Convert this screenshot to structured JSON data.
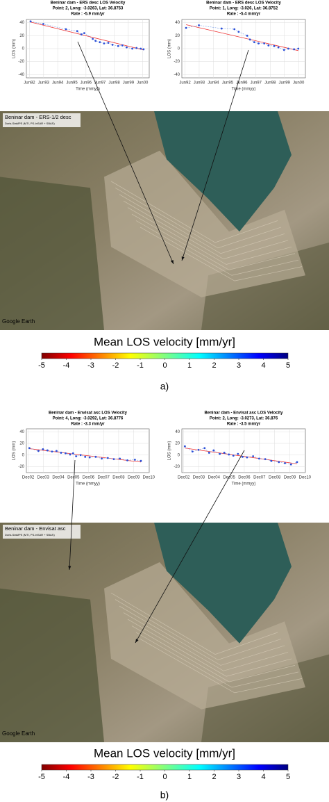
{
  "panels": [
    {
      "label": "a)",
      "charts": [
        {
          "type": "line",
          "title": "Beninar dam - ERS desc  LOS Velocity",
          "subtitle": "Point: 2,  Long: -3.0263,  Lat: 36.8753",
          "rate": "Rate : -5.9 mm/yr",
          "xlabel": "Time (mmyy)",
          "ylabel": "LOS (mm)",
          "xlim": [
            1992.2,
            2000.9
          ],
          "ylim": [
            -45,
            45
          ],
          "yticks": [
            40,
            20,
            0,
            -20,
            -40
          ],
          "xticks": [
            {
              "value": 1992.42,
              "label": "Jun92"
            },
            {
              "value": 1993.42,
              "label": "Jun93"
            },
            {
              "value": 1994.42,
              "label": "Jun94"
            },
            {
              "value": 1995.42,
              "label": "Jun95"
            },
            {
              "value": 1996.42,
              "label": "Jun96"
            },
            {
              "value": 1997.42,
              "label": "Jun97"
            },
            {
              "value": 1998.42,
              "label": "Jun98"
            },
            {
              "value": 1999.42,
              "label": "Jun99"
            },
            {
              "value": 2000.42,
              "label": "Jun00"
            }
          ],
          "grid": true,
          "color": "#2b4fd8",
          "trend_color": "#e33",
          "x": [
            1992.5,
            1993.4,
            1995.0,
            1995.8,
            1996.1,
            1996.3,
            1996.9,
            1997.1,
            1997.4,
            1997.7,
            1998.0,
            1998.3,
            1998.7,
            1999.0,
            1999.3,
            1999.7,
            2000.0,
            2000.3,
            2000.5
          ],
          "values": [
            42,
            38,
            30,
            27,
            22,
            24,
            15,
            12,
            10,
            8,
            9,
            6,
            4,
            5,
            2,
            0,
            1,
            0,
            -1
          ],
          "trend": {
            "x": [
              1992.5,
              2000.5
            ],
            "values": [
              41,
              -2
            ]
          }
        },
        {
          "type": "line",
          "title": "Beninar dam - ERS desc  LOS Velocity",
          "subtitle": "Point: 1,  Long: -3.026,  Lat: 36.8752",
          "rate": "Rate : -5.4 mm/yr",
          "xlabel": "Time (mmyy)",
          "ylabel": "LOS (mm)",
          "xlim": [
            1992.2,
            2000.9
          ],
          "ylim": [
            -45,
            45
          ],
          "yticks": [
            40,
            20,
            0,
            -20,
            -40
          ],
          "xticks": [
            {
              "value": 1992.42,
              "label": "Jun92"
            },
            {
              "value": 1993.42,
              "label": "Jun93"
            },
            {
              "value": 1994.42,
              "label": "Jun94"
            },
            {
              "value": 1995.42,
              "label": "Jun95"
            },
            {
              "value": 1996.42,
              "label": "Jun96"
            },
            {
              "value": 1997.42,
              "label": "Jun97"
            },
            {
              "value": 1998.42,
              "label": "Jun98"
            },
            {
              "value": 1999.42,
              "label": "Jun99"
            },
            {
              "value": 2000.42,
              "label": "Jun00"
            }
          ],
          "grid": true,
          "color": "#2b4fd8",
          "trend_color": "#e33",
          "x": [
            1992.5,
            1993.4,
            1995.0,
            1995.9,
            1996.2,
            1996.8,
            1997.0,
            1997.3,
            1997.6,
            1998.0,
            1998.3,
            1998.7,
            1999.0,
            1999.4,
            1999.7,
            2000.1,
            2000.4
          ],
          "values": [
            32,
            36,
            31,
            30,
            26,
            20,
            14,
            10,
            8,
            8,
            5,
            4,
            2,
            -2,
            0,
            -1,
            0
          ],
          "trend": {
            "x": [
              1992.5,
              2000.4
            ],
            "values": [
              37,
              -3
            ]
          }
        }
      ],
      "map": {
        "title": "Beninar dam - ERS-1/2 desc",
        "subtitle": "Doris-StaMPS (MTI, PS-InSAR + SBAS)",
        "credit": "Google Earth"
      },
      "colorbar": {
        "title": "Mean LOS velocity [mm/yr]",
        "range": [
          -5,
          5
        ],
        "ticks": [
          -5,
          -4,
          -3,
          -2,
          -1,
          0,
          1,
          2,
          3,
          4,
          5
        ]
      }
    },
    {
      "label": "b)",
      "charts": [
        {
          "type": "line",
          "title": "Beninar dam - Envisat asc  LOS Velocity",
          "subtitle": "Point: 4,  Long: -3.0292,  Lat: 36.8776",
          "rate": "Rate : -3.3 mm/yr",
          "xlabel": "Time (mmyy)",
          "ylabel": "LOS (mm)",
          "xlim": [
            2002.8,
            2010.95
          ],
          "ylim": [
            -30,
            45
          ],
          "yticks": [
            40,
            20,
            0,
            -20
          ],
          "xticks": [
            {
              "value": 2002.92,
              "label": "Dec02"
            },
            {
              "value": 2003.92,
              "label": "Dec03"
            },
            {
              "value": 2004.92,
              "label": "Dec04"
            },
            {
              "value": 2005.92,
              "label": "Dec05"
            },
            {
              "value": 2006.92,
              "label": "Dec06"
            },
            {
              "value": 2007.92,
              "label": "Dec07"
            },
            {
              "value": 2008.92,
              "label": "Dec08"
            },
            {
              "value": 2009.92,
              "label": "Dec09"
            },
            {
              "value": 2010.92,
              "label": "Dec10"
            }
          ],
          "grid": true,
          "color": "#2b4fd8",
          "trend_color": "#e33",
          "x": [
            2003.0,
            2003.6,
            2003.9,
            2004.2,
            2004.5,
            2004.8,
            2005.1,
            2005.4,
            2005.7,
            2005.9,
            2006.1,
            2006.4,
            2006.7,
            2007.0,
            2007.4,
            2007.8,
            2008.2,
            2008.6,
            2009.0,
            2009.5,
            2010.0,
            2010.4
          ],
          "values": [
            12,
            7,
            10,
            8,
            6,
            7,
            4,
            3,
            1,
            3,
            -2,
            0,
            -3,
            -4,
            -3,
            -6,
            -5,
            -7,
            -6,
            -9,
            -8,
            -10
          ],
          "trend": {
            "x": [
              2003.0,
              2010.4
            ],
            "values": [
              11,
              -12
            ]
          }
        },
        {
          "type": "line",
          "title": "Beninar dam - Envisat asc  LOS Velocity",
          "subtitle": "Point: 2,  Long: -3.0273,  Lat: 36.876",
          "rate": "Rate : -3.5 mm/yr",
          "xlabel": "Time (mmyy)",
          "ylabel": "LOS (mm)",
          "xlim": [
            2002.8,
            2010.95
          ],
          "ylim": [
            -30,
            45
          ],
          "yticks": [
            40,
            20,
            0,
            -20
          ],
          "xticks": [
            {
              "value": 2002.92,
              "label": "Dec02"
            },
            {
              "value": 2003.92,
              "label": "Dec03"
            },
            {
              "value": 2004.92,
              "label": "Dec04"
            },
            {
              "value": 2005.92,
              "label": "Dec05"
            },
            {
              "value": 2006.92,
              "label": "Dec06"
            },
            {
              "value": 2007.92,
              "label": "Dec07"
            },
            {
              "value": 2008.92,
              "label": "Dec08"
            },
            {
              "value": 2009.92,
              "label": "Dec09"
            },
            {
              "value": 2010.92,
              "label": "Dec10"
            }
          ],
          "grid": true,
          "color": "#2b4fd8",
          "trend_color": "#e33",
          "x": [
            2003.0,
            2003.5,
            2003.9,
            2004.3,
            2004.6,
            2004.9,
            2005.3,
            2005.6,
            2005.9,
            2006.2,
            2006.5,
            2006.8,
            2007.1,
            2007.5,
            2007.9,
            2008.3,
            2008.7,
            2009.2,
            2009.6,
            2010.0,
            2010.4
          ],
          "values": [
            15,
            6,
            9,
            12,
            4,
            8,
            2,
            4,
            1,
            -1,
            2,
            -3,
            -4,
            -2,
            -6,
            -7,
            -10,
            -12,
            -14,
            -16,
            -12
          ],
          "trend": {
            "x": [
              2003.0,
              2010.4
            ],
            "values": [
              12,
              -15
            ]
          }
        }
      ],
      "map": {
        "title": "Beninar dam - Envisat asc",
        "subtitle": "Doris-StaMPS (MTI, PS-InSAR + SBAS)",
        "credit": "Google Earth"
      },
      "colorbar": {
        "title": "Mean LOS velocity [mm/yr]",
        "range": [
          -5,
          5
        ],
        "ticks": [
          -5,
          -4,
          -3,
          -2,
          -1,
          0,
          1,
          2,
          3,
          4,
          5
        ]
      }
    }
  ]
}
